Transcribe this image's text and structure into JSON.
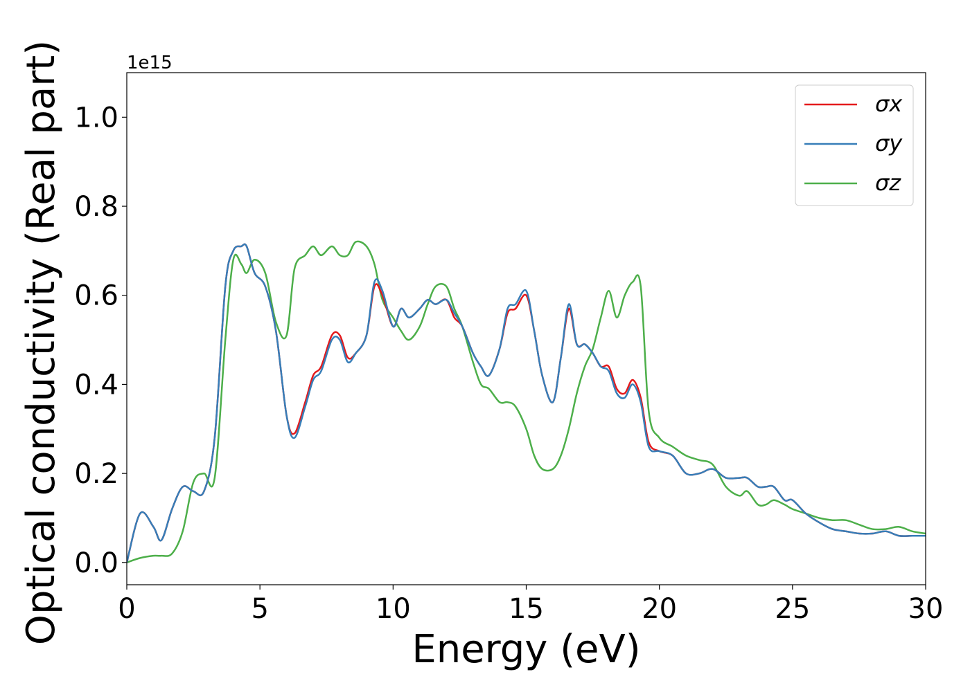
{
  "chart_data": {
    "type": "line",
    "title": "",
    "xlabel": "Energy (eV)",
    "ylabel": "Optical conductivity (Real part)",
    "y_offset_label": "1e15",
    "xlim": [
      0,
      30
    ],
    "ylim": [
      -0.05,
      1.1
    ],
    "x_ticks": [
      0,
      5,
      10,
      15,
      20,
      25,
      30
    ],
    "y_ticks": [
      0.0,
      0.2,
      0.4,
      0.6,
      0.8,
      1.0
    ],
    "x_tick_labels": [
      "0",
      "5",
      "10",
      "15",
      "20",
      "25",
      "30"
    ],
    "y_tick_labels": [
      "0.0",
      "0.2",
      "0.4",
      "0.6",
      "0.8",
      "1.0"
    ],
    "grid": false,
    "legend_position": "top-right",
    "x": [
      0,
      0.5,
      1,
      1.3,
      1.7,
      2.1,
      2.5,
      2.9,
      3.3,
      3.7,
      4,
      4.3,
      4.5,
      4.8,
      5.2,
      5.6,
      6,
      6.3,
      6.7,
      7,
      7.3,
      7.7,
      8,
      8.3,
      8.6,
      9,
      9.3,
      9.6,
      10,
      10.3,
      10.6,
      11,
      11.3,
      11.6,
      12,
      12.3,
      12.6,
      13,
      13.3,
      13.6,
      14,
      14.3,
      14.6,
      15,
      15.3,
      15.6,
      16,
      16.3,
      16.6,
      16.9,
      17.2,
      17.5,
      17.8,
      18.1,
      18.4,
      18.7,
      19,
      19.3,
      19.6,
      20,
      20.5,
      21,
      21.5,
      22,
      22.5,
      23,
      23.3,
      23.7,
      24,
      24.3,
      24.7,
      25,
      25.5,
      26,
      26.5,
      27,
      27.5,
      28,
      28.5,
      29,
      29.5,
      30
    ],
    "series": [
      {
        "name": "σx",
        "color": "#e41a1c",
        "values": [
          0,
          0.11,
          0.08,
          0.05,
          0.12,
          0.17,
          0.16,
          0.16,
          0.28,
          0.62,
          0.7,
          0.71,
          0.71,
          0.65,
          0.62,
          0.52,
          0.33,
          0.29,
          0.36,
          0.42,
          0.44,
          0.51,
          0.51,
          0.46,
          0.47,
          0.51,
          0.62,
          0.6,
          0.53,
          0.57,
          0.55,
          0.57,
          0.59,
          0.58,
          0.59,
          0.55,
          0.53,
          0.47,
          0.44,
          0.42,
          0.48,
          0.56,
          0.57,
          0.6,
          0.52,
          0.42,
          0.36,
          0.46,
          0.57,
          0.49,
          0.49,
          0.47,
          0.44,
          0.44,
          0.39,
          0.38,
          0.41,
          0.37,
          0.27,
          0.25,
          0.24,
          0.2,
          0.2,
          0.21,
          0.19,
          0.19,
          0.19,
          0.17,
          0.17,
          0.17,
          0.14,
          0.14,
          0.11,
          0.09,
          0.075,
          0.07,
          0.065,
          0.065,
          0.07,
          0.06,
          0.06,
          0.06
        ]
      },
      {
        "name": "σy",
        "color": "#377eb8",
        "values": [
          0,
          0.11,
          0.08,
          0.05,
          0.12,
          0.17,
          0.16,
          0.16,
          0.28,
          0.62,
          0.7,
          0.71,
          0.71,
          0.65,
          0.62,
          0.52,
          0.33,
          0.28,
          0.35,
          0.41,
          0.43,
          0.5,
          0.5,
          0.45,
          0.47,
          0.51,
          0.63,
          0.61,
          0.53,
          0.57,
          0.55,
          0.57,
          0.59,
          0.58,
          0.59,
          0.56,
          0.53,
          0.47,
          0.44,
          0.42,
          0.48,
          0.57,
          0.58,
          0.61,
          0.52,
          0.42,
          0.36,
          0.46,
          0.58,
          0.49,
          0.49,
          0.47,
          0.44,
          0.43,
          0.38,
          0.37,
          0.4,
          0.36,
          0.26,
          0.25,
          0.24,
          0.2,
          0.2,
          0.21,
          0.19,
          0.19,
          0.19,
          0.17,
          0.17,
          0.17,
          0.14,
          0.14,
          0.11,
          0.09,
          0.075,
          0.07,
          0.065,
          0.065,
          0.07,
          0.06,
          0.06,
          0.06
        ]
      },
      {
        "name": "σz",
        "color": "#4daf4a",
        "values": [
          0,
          0.01,
          0.015,
          0.015,
          0.02,
          0.07,
          0.18,
          0.2,
          0.19,
          0.5,
          0.68,
          0.67,
          0.65,
          0.68,
          0.65,
          0.54,
          0.51,
          0.66,
          0.69,
          0.71,
          0.69,
          0.71,
          0.69,
          0.69,
          0.72,
          0.71,
          0.67,
          0.59,
          0.55,
          0.52,
          0.5,
          0.53,
          0.58,
          0.62,
          0.62,
          0.57,
          0.53,
          0.45,
          0.4,
          0.39,
          0.36,
          0.36,
          0.35,
          0.3,
          0.24,
          0.21,
          0.21,
          0.24,
          0.3,
          0.38,
          0.44,
          0.48,
          0.55,
          0.61,
          0.55,
          0.6,
          0.63,
          0.62,
          0.34,
          0.28,
          0.26,
          0.24,
          0.23,
          0.22,
          0.17,
          0.15,
          0.16,
          0.13,
          0.13,
          0.14,
          0.13,
          0.12,
          0.11,
          0.1,
          0.095,
          0.095,
          0.085,
          0.075,
          0.075,
          0.08,
          0.07,
          0.065
        ]
      }
    ]
  }
}
